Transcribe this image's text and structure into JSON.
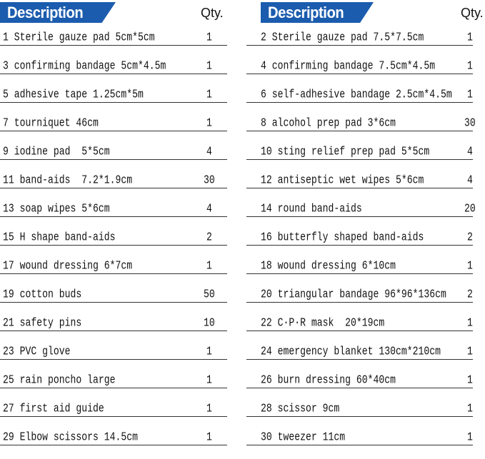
{
  "header": {
    "description_label": "Description",
    "qty_label": "Qty.",
    "banner_color": "#1b5cae"
  },
  "left_items": [
    {
      "desc": "1 Sterile gauze pad 5cm*5cm",
      "qty": "1"
    },
    {
      "desc": "3 confirming bandage 5cm*4.5m",
      "qty": "1"
    },
    {
      "desc": "5 adhesive tape 1.25cm*5m",
      "qty": "1"
    },
    {
      "desc": "7 tourniquet 46cm",
      "qty": "1"
    },
    {
      "desc": "9 iodine pad  5*5cm",
      "qty": "4"
    },
    {
      "desc": "11 band-aids  7.2*1.9cm",
      "qty": "30"
    },
    {
      "desc": "13 soap wipes 5*6cm",
      "qty": "4"
    },
    {
      "desc": "15 H shape band-aids",
      "qty": "2"
    },
    {
      "desc": "17 wound dressing 6*7cm",
      "qty": "1"
    },
    {
      "desc": "19 cotton buds",
      "qty": "50"
    },
    {
      "desc": "21 safety pins",
      "qty": "10"
    },
    {
      "desc": "23 PVC glove",
      "qty": "1"
    },
    {
      "desc": "25 rain poncho large",
      "qty": "1"
    },
    {
      "desc": "27 first aid guide",
      "qty": "1"
    },
    {
      "desc": "29 Elbow scissors 14.5cm",
      "qty": "1"
    }
  ],
  "right_items": [
    {
      "desc": "2 Sterile gauze pad 7.5*7.5cm",
      "qty": "1"
    },
    {
      "desc": "4 confirming bandage 7.5cm*4.5m",
      "qty": "1"
    },
    {
      "desc": "6 self-adhesive bandage 2.5cm*4.5m",
      "qty": "1"
    },
    {
      "desc": "8 alcohol prep pad 3*6cm",
      "qty": "30"
    },
    {
      "desc": "10 sting relief prep pad 5*5cm",
      "qty": "4"
    },
    {
      "desc": "12 antiseptic wet wipes 5*6cm",
      "qty": "4"
    },
    {
      "desc": "14 round band-aids",
      "qty": "20"
    },
    {
      "desc": "16 butterfly shaped band-aids",
      "qty": "2"
    },
    {
      "desc": "18 wound dressing 6*10cm",
      "qty": "1"
    },
    {
      "desc": "20 triangular bandage 96*96*136cm",
      "qty": "2"
    },
    {
      "desc": "22 C·P·R mask  20*19cm",
      "qty": "1"
    },
    {
      "desc": "24 emergency blanket 130cm*210cm",
      "qty": "1"
    },
    {
      "desc": "26 burn dressing 60*40cm",
      "qty": "1"
    },
    {
      "desc": "28 scissor 9cm",
      "qty": "1"
    },
    {
      "desc": "30 tweezer 11cm",
      "qty": "1"
    }
  ]
}
